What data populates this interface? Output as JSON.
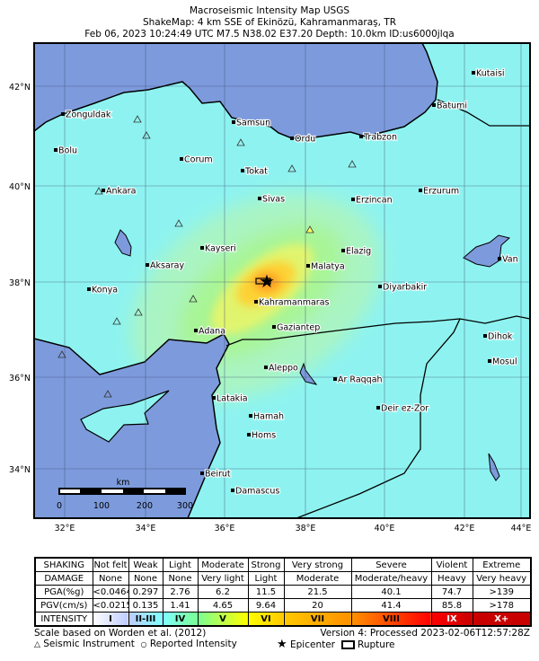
{
  "header": {
    "line1": "Macroseismic Intensity Map USGS",
    "line2": "ShakeMap: 4 km SSE of Ekinözü, Kahramanmaraş, TR",
    "line3": "Feb 06, 2023 10:24:49 UTC M7.5 N38.02 E37.20 Depth: 10.0km ID:us6000jlqa"
  },
  "map": {
    "lat_labels": [
      "42°N",
      "40°N",
      "38°N",
      "36°N",
      "34°N"
    ],
    "lon_labels": [
      "32°E",
      "34°E",
      "36°E",
      "38°E",
      "40°E",
      "42°E",
      "44°E"
    ],
    "colors": {
      "sea": "#7d9bdc",
      "land": "#8ef3f0",
      "border": "#000000"
    },
    "cities": [
      "Zonguldak",
      "Bolu",
      "Samsun",
      "Ordu",
      "Trabzon",
      "Kutaisi",
      "Batumi",
      "Corum",
      "Tokat",
      "Ankara",
      "Sivas",
      "Erzincan",
      "Erzurum",
      "Kayseri",
      "Aksaray",
      "Elazig",
      "Malatya",
      "Van",
      "Konya",
      "Kahramanmaras",
      "Diyarbakir",
      "Adana",
      "Gaziantep",
      "Dihok",
      "Mosul",
      "Aleppo",
      "Ar Raqqah",
      "Latakia",
      "Deir ez-Zor",
      "Hamah",
      "Homs",
      "Beirut",
      "Damascus"
    ],
    "scale_bar": {
      "unit": "km",
      "ticks": [
        "0",
        "100",
        "200",
        "300"
      ]
    },
    "epicenter_icon": "star-icon"
  },
  "legend": {
    "rows": [
      [
        "SHAKING",
        "Not felt",
        "Weak",
        "Light",
        "Moderate",
        "Strong",
        "Very strong",
        "Severe",
        "Violent",
        "Extreme"
      ],
      [
        "DAMAGE",
        "None",
        "None",
        "None",
        "Very light",
        "Light",
        "Moderate",
        "Moderate/heavy",
        "Heavy",
        "Very heavy"
      ],
      [
        "PGA(%g)",
        "<0.0464",
        "0.297",
        "2.76",
        "6.2",
        "11.5",
        "21.5",
        "40.1",
        "74.7",
        ">139"
      ],
      [
        "PGV(cm/s)",
        "<0.0215",
        "0.135",
        "1.41",
        "4.65",
        "9.64",
        "20",
        "41.4",
        "85.8",
        ">178"
      ],
      [
        "INTENSITY",
        "I",
        "II-III",
        "IV",
        "V",
        "VI",
        "VII",
        "VIII",
        "IX",
        "X+"
      ]
    ],
    "intensity_colors": [
      "#ffffff",
      "#bfccff",
      "#80ffff",
      "#7aff93",
      "#ffff00",
      "#ffc800",
      "#ff9100",
      "#ff0000",
      "#c80000"
    ]
  },
  "footer": {
    "scale_note": "Scale based on Worden et al. (2012)",
    "version": "Version 4: Processed 2023-02-06T12:57:28Z",
    "seismic_instrument": "Seismic Instrument",
    "reported_intensity": "Reported Intensity",
    "epicenter": "Epicenter",
    "rupture": "Rupture"
  }
}
